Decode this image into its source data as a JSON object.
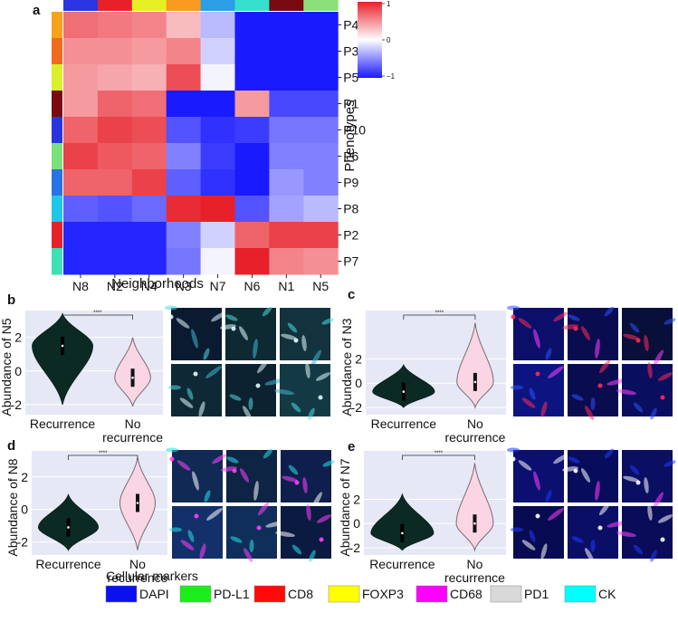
{
  "panel_a": {
    "label": "a",
    "rows": [
      "P4",
      "P3",
      "P5",
      "P1",
      "P10",
      "P6",
      "P9",
      "P8",
      "P2",
      "P7"
    ],
    "cols": [
      "N8",
      "N2",
      "N4",
      "N3",
      "N7",
      "N6",
      "N1",
      "N5"
    ],
    "row_colors": [
      "#f7a21b",
      "#f16b1f",
      "#d9f02a",
      "#7a0a12",
      "#2a35e0",
      "#7be07a",
      "#2a72e8",
      "#1fc7e8",
      "#e8202a",
      "#3fe0b4"
    ],
    "col_colors": [
      "#2a35e0",
      "#e8202a",
      "#e6ef23",
      "#f79a1f",
      "#2a9fe8",
      "#36e0cf",
      "#7a0a12",
      "#8ce07a"
    ],
    "ylabel": "Phenotypes",
    "xlabel": "Neighborhoods",
    "colorbar_ticks": [
      "1",
      "0",
      "−1"
    ],
    "chart_data": {
      "type": "heatmap",
      "x": [
        "N8",
        "N2",
        "N4",
        "N3",
        "N7",
        "N6",
        "N1",
        "N5"
      ],
      "y": [
        "P4",
        "P3",
        "P5",
        "P1",
        "P10",
        "P6",
        "P9",
        "P8",
        "P2",
        "P7"
      ],
      "values": [
        [
          0.65,
          0.6,
          0.55,
          0.3,
          -0.3,
          -1.0,
          -1.0,
          -1.0
        ],
        [
          0.5,
          0.5,
          0.45,
          0.55,
          -0.2,
          -1.0,
          -1.0,
          -1.0
        ],
        [
          0.45,
          0.4,
          0.35,
          0.8,
          -0.05,
          -1.0,
          -1.0,
          -1.0
        ],
        [
          0.45,
          0.7,
          0.65,
          -1.0,
          -1.0,
          0.45,
          -0.8,
          -0.8
        ],
        [
          0.7,
          0.85,
          0.8,
          -0.75,
          -0.9,
          -0.85,
          -0.6,
          -0.6
        ],
        [
          0.85,
          0.75,
          0.7,
          -0.55,
          -0.85,
          -1.0,
          -0.55,
          -0.55
        ],
        [
          0.7,
          0.7,
          0.85,
          -0.7,
          -0.9,
          -1.0,
          -0.45,
          -0.55
        ],
        [
          -0.7,
          -0.75,
          -0.65,
          0.95,
          1.0,
          -0.75,
          -0.4,
          -0.3
        ],
        [
          -0.95,
          -0.95,
          -0.95,
          -0.55,
          -0.2,
          0.7,
          0.85,
          0.85
        ],
        [
          -0.95,
          -0.95,
          -0.95,
          -0.6,
          -0.05,
          1.0,
          0.55,
          0.5
        ]
      ],
      "colorscale": [
        "#1a1aff",
        "#ffffff",
        "#e8202a"
      ],
      "zlim": [
        -1,
        1
      ]
    }
  },
  "violin_panels": [
    {
      "label": "b",
      "ylabel": "Abundance of N5",
      "yticks": [
        "2",
        "0",
        "-2"
      ],
      "signif": "****",
      "groups": [
        "Recurrence",
        "No recurrence"
      ],
      "no_recurrence_lines": [
        "No",
        "recurrence"
      ],
      "chart_data": {
        "type": "violin",
        "categories": [
          "Recurrence",
          "No recurrence"
        ],
        "medians": [
          1.5,
          -0.4
        ],
        "ranges": [
          [
            -2.0,
            3.4
          ],
          [
            -2.1,
            2.0
          ]
        ],
        "ylim": [
          -2.6,
          3.6
        ]
      }
    },
    {
      "label": "c",
      "ylabel": "Abundance of N3",
      "yticks": [
        "2",
        "0",
        "-2"
      ],
      "signif": "****",
      "groups": [
        "Recurrence",
        "No recurrence"
      ],
      "no_recurrence_lines": [
        "No",
        "recurrence"
      ],
      "chart_data": {
        "type": "violin",
        "categories": [
          "Recurrence",
          "No recurrence"
        ],
        "medians": [
          -0.7,
          0.1
        ],
        "ranges": [
          [
            -2.0,
            1.5
          ],
          [
            -2.0,
            5.0
          ]
        ],
        "ylim": [
          -2.6,
          6.0
        ]
      }
    },
    {
      "label": "d",
      "ylabel": "Abundance of N8",
      "yticks": [
        "2",
        "0",
        "-2"
      ],
      "signif": "****",
      "groups": [
        "Recurrence",
        "No recurrence"
      ],
      "no_recurrence_lines": [
        "No",
        "recurrence"
      ],
      "chart_data": {
        "type": "violin",
        "categories": [
          "Recurrence",
          "No recurrence"
        ],
        "medians": [
          -1.1,
          0.4
        ],
        "ranges": [
          [
            -2.5,
            0.9
          ],
          [
            -2.5,
            3.2
          ]
        ],
        "ylim": [
          -2.8,
          3.6
        ]
      }
    },
    {
      "label": "e",
      "ylabel": "Abundance of N7",
      "yticks": [
        "2",
        "0",
        "-2"
      ],
      "signif": "****",
      "groups": [
        "Recurrence",
        "No recurrence"
      ],
      "no_recurrence_lines": [
        "No",
        "recurrence"
      ],
      "chart_data": {
        "type": "violin",
        "categories": [
          "Recurrence",
          "No recurrence"
        ],
        "medians": [
          -0.8,
          0.0
        ],
        "ranges": [
          [
            -2.2,
            2.4
          ],
          [
            -2.2,
            5.0
          ]
        ],
        "ylim": [
          -2.6,
          6.0
        ]
      }
    }
  ],
  "legend": {
    "title": "Cellular markers",
    "items": [
      {
        "label": "DAPI",
        "color": "#0a10f0"
      },
      {
        "label": "PD-L1",
        "color": "#1aee1a"
      },
      {
        "label": "CD8",
        "color": "#ff0a0a"
      },
      {
        "label": "FOXP3",
        "color": "#ffff00"
      },
      {
        "label": "CD68",
        "color": "#ff00ff"
      },
      {
        "label": "PD1",
        "color": "#d9d9d9"
      },
      {
        "label": "CK",
        "color": "#00ffff"
      }
    ]
  },
  "colors": {
    "violin_recurrence": "#0c2a24",
    "violin_no_recurrence": "#fad6e4",
    "plot_bg": "#e6e8f5"
  }
}
